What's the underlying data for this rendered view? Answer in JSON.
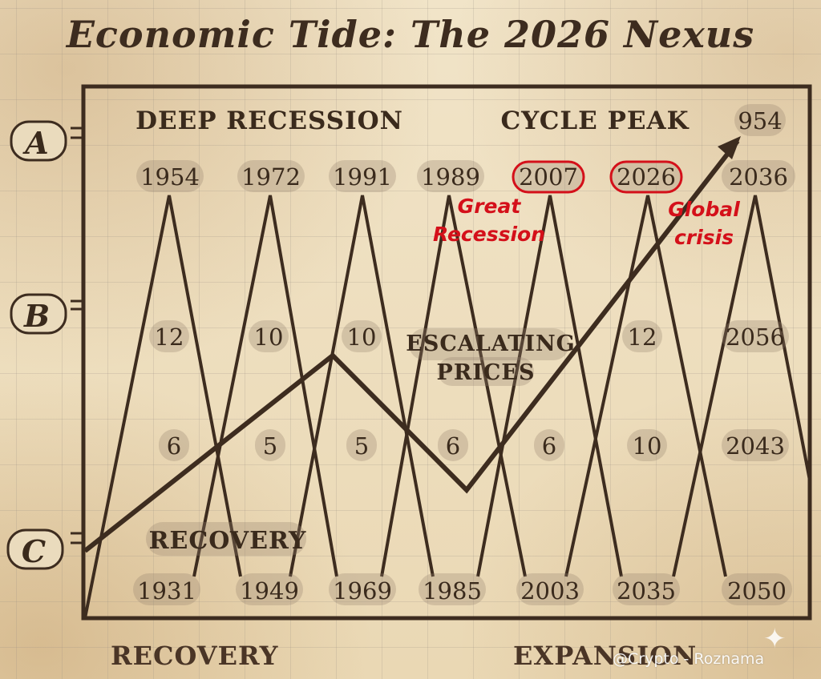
{
  "title": "Economic Tide: The 2026 Nexus",
  "side_markers": [
    "A",
    "B",
    "C"
  ],
  "region_labels": {
    "deep_recession": "DEEP RECESSION",
    "cycle_peak": "CYCLE PEAK",
    "escalating_line1": "ESCALATING",
    "escalating_line2": "PRICES",
    "recovery_inner": "RECOVERY"
  },
  "peak_value": "954",
  "top_years": [
    "1954",
    "1972",
    "1991",
    "1989",
    "2007",
    "2026",
    "2036"
  ],
  "highlighted_years": [
    "2007",
    "2026"
  ],
  "mid_values": [
    "12",
    "10",
    "10",
    "12",
    "2056"
  ],
  "lower_values": [
    "6",
    "5",
    "5",
    "6",
    "6",
    "10",
    "2043"
  ],
  "bottom_years": [
    "1931",
    "1949",
    "1969",
    "1985",
    "2003",
    "2035",
    "2050"
  ],
  "annotations": {
    "great_recession_1": "Great",
    "great_recession_2": "Recession",
    "global_crisis_1": "Global",
    "global_crisis_2": "crisis"
  },
  "bottom_labels": {
    "left": "RECOVERY",
    "right": "EXPANSION"
  },
  "watermark": "@Crypto - Roznama",
  "colors": {
    "ink": "#3d2c1f",
    "highlight": "#d4101a",
    "paper": "#ecdcbc"
  }
}
